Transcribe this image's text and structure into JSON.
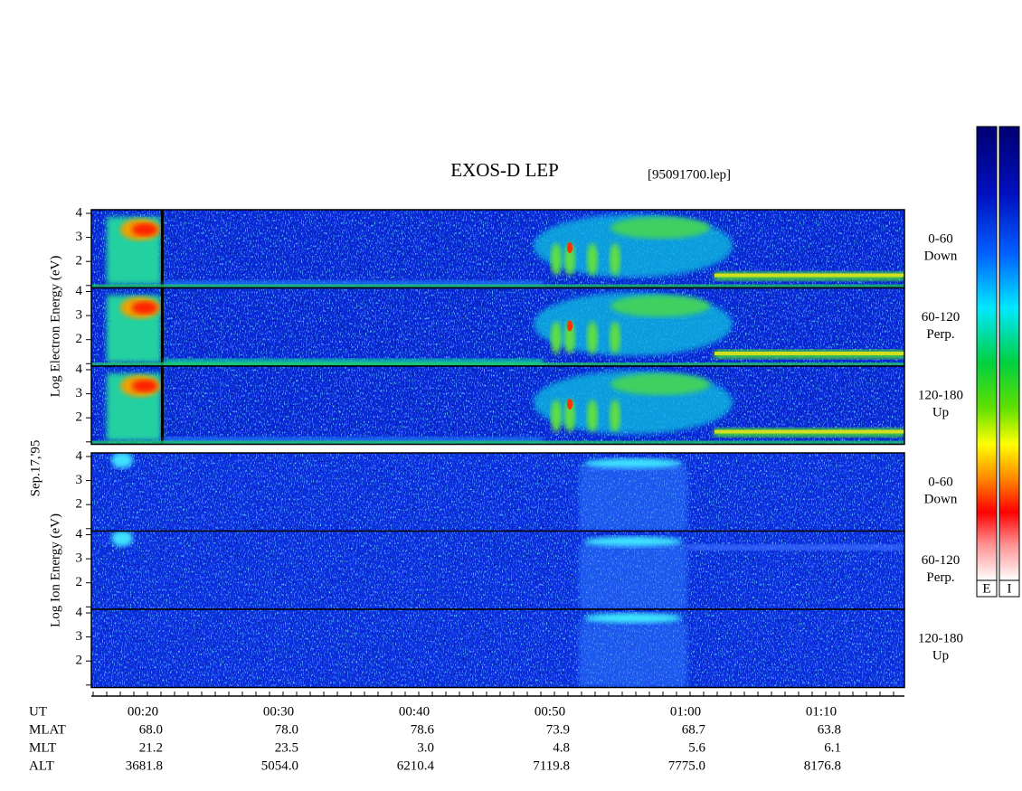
{
  "header": {
    "title": "EXOS-D LEP",
    "file": "[95091700.lep]"
  },
  "date_label": "Sep.17,'95",
  "yticks": [
    "4",
    "3",
    "2"
  ],
  "electron": {
    "axis_label": "Log Electron Energy (eV)",
    "panels": [
      {
        "angle": "0-60",
        "direction": "Down"
      },
      {
        "angle": "60-120",
        "direction": "Perp."
      },
      {
        "angle": "120-180",
        "direction": "Up"
      }
    ]
  },
  "ion": {
    "axis_label": "Log Ion Energy (eV)",
    "panels": [
      {
        "angle": "0-60",
        "direction": "Down"
      },
      {
        "angle": "60-120",
        "direction": "Perp."
      },
      {
        "angle": "120-180",
        "direction": "Up"
      }
    ]
  },
  "ephemeris": {
    "rows": [
      [
        "UT",
        "00:20",
        "00:30",
        "00:40",
        "00:50",
        "01:00",
        "01:10"
      ],
      [
        "MLAT",
        "68.0",
        "78.0",
        "78.6",
        "73.9",
        "68.7",
        "63.8"
      ],
      [
        "MLT",
        "21.2",
        "23.5",
        "3.0",
        "4.8",
        "5.6",
        "6.1"
      ],
      [
        "ALT",
        "3681.8",
        "5054.0",
        "6210.4",
        "7119.8",
        "7775.0",
        "8176.8"
      ]
    ]
  },
  "colorbar": {
    "labels": [
      "E",
      "I"
    ]
  }
}
